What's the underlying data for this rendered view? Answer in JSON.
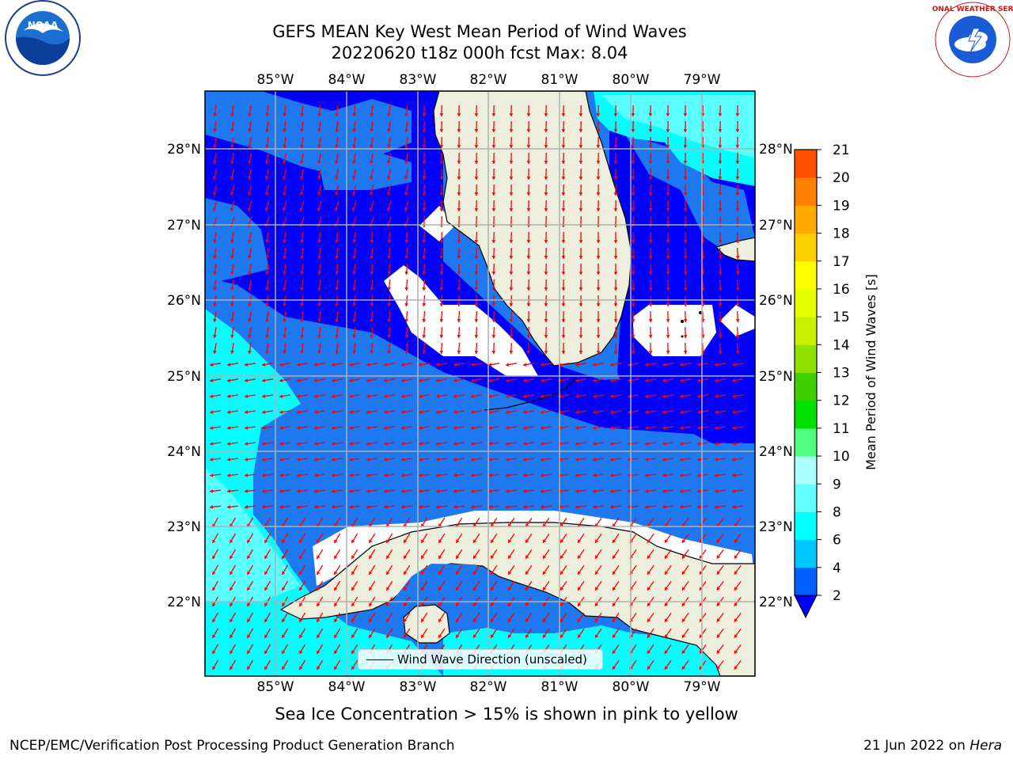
{
  "header": {
    "title_line1": "GEFS MEAN Key West Mean Period of Wind Waves",
    "title_line2": "20220620 t18z 000h fcst   Max: 8.04"
  },
  "map": {
    "lon_labels": [
      "85°W",
      "84°W",
      "83°W",
      "82°W",
      "81°W",
      "80°W",
      "79°W"
    ],
    "lat_labels": [
      "28°N",
      "27°N",
      "26°N",
      "25°N",
      "24°N",
      "23°N",
      "22°N"
    ],
    "legend_label": "Wind Wave Direction (unscaled)",
    "colors": {
      "land": "#eeeedd",
      "ocean_deep": "#0000ff",
      "ocean_mid": "#1e78f0",
      "ocean_light": "#00ffff",
      "ocean_pale": "#5affff",
      "arrow": "#ff0000",
      "grid": "#b0b0b0"
    }
  },
  "colorbar": {
    "label": "Mean Period of Wind Waves [s]",
    "ticks": [
      "2",
      "4",
      "6",
      "8",
      "9",
      "10",
      "11",
      "12",
      "13",
      "14",
      "15",
      "16",
      "17",
      "18",
      "19",
      "20",
      "21"
    ],
    "colors": [
      "#0060ff",
      "#00c8ff",
      "#00ffff",
      "#64ffff",
      "#aaffff",
      "#50ff80",
      "#00e000",
      "#40d000",
      "#90e000",
      "#c8f000",
      "#e6ff00",
      "#ffff00",
      "#ffd000",
      "#ffaa00",
      "#ff8000",
      "#ff5000",
      "#ff2000",
      "#ff0000"
    ]
  },
  "caption": "Sea Ice Concentration > 15% is shown in pink to yellow",
  "footer": {
    "left": "NCEP/EMC/Verification Post Processing Product Generation Branch",
    "right_prefix": "21 Jun 2022 on ",
    "right_host": "Hera"
  },
  "logos": {
    "noaa_text": "NOAA",
    "nws_text": "NATIONAL WEATHER SERVICE"
  }
}
